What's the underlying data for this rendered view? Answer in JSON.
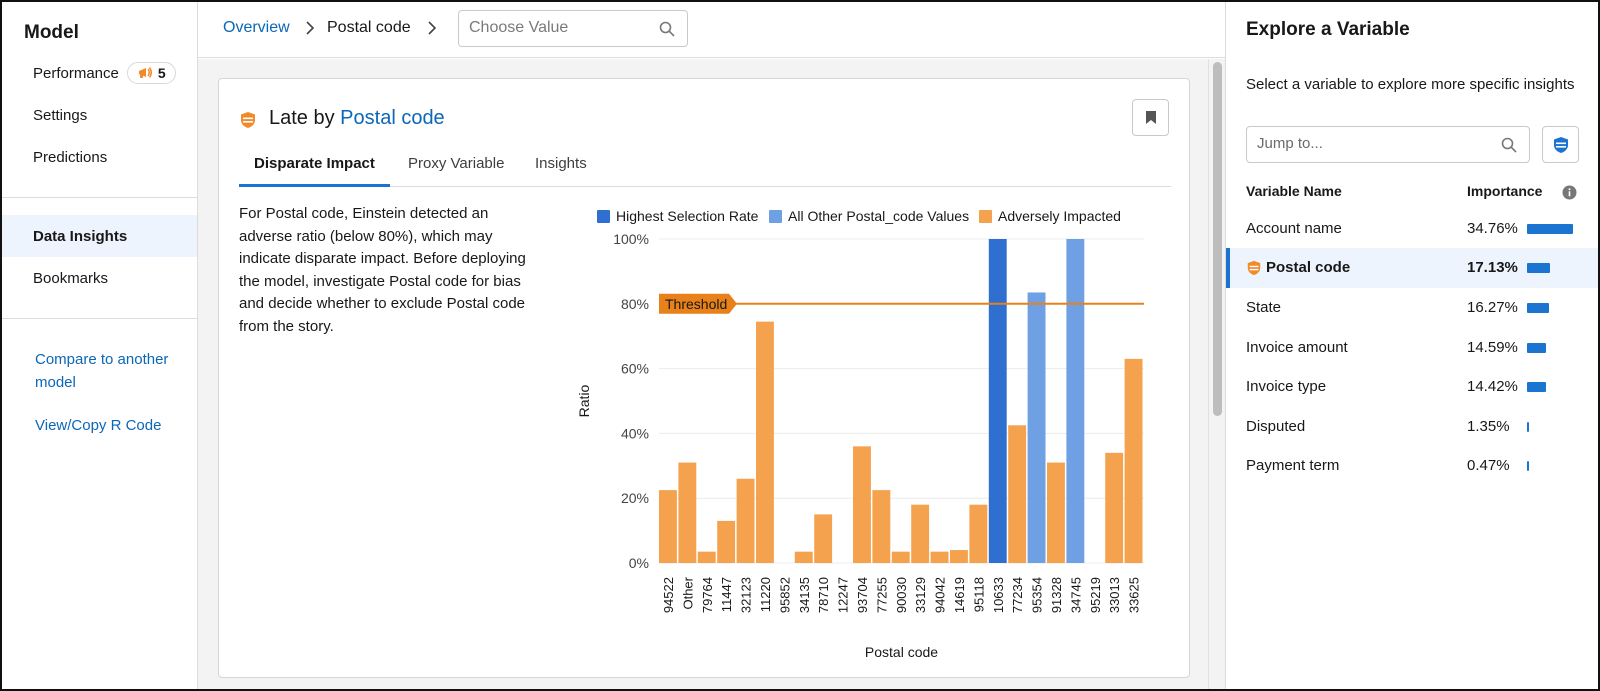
{
  "sidebar": {
    "title": "Model",
    "items": [
      {
        "label": "Performance",
        "badge": "5"
      },
      {
        "label": "Settings"
      },
      {
        "label": "Predictions"
      },
      {
        "label": "Data Insights"
      },
      {
        "label": "Bookmarks"
      }
    ],
    "links": [
      {
        "label": "Compare to another model"
      },
      {
        "label": "View/Copy R Code"
      }
    ]
  },
  "breadcrumb": {
    "overview": "Overview",
    "current": "Postal code",
    "choose_placeholder": "Choose Value"
  },
  "card": {
    "title_prefix": "Late by",
    "title_variable": "Postal code",
    "tabs": [
      "Disparate Impact",
      "Proxy Variable",
      "Insights"
    ],
    "description": "For Postal code, Einstein detected an adverse ratio (below 80%), which may indicate disparate impact. Before deploying the model, investigate Postal code for bias and decide whether to exclude Postal code from the story."
  },
  "chart_data": {
    "type": "bar",
    "xlabel": "Postal code",
    "ylabel": "Ratio",
    "ylim": [
      0,
      100
    ],
    "yticks": [
      "0%",
      "20%",
      "40%",
      "60%",
      "80%",
      "100%"
    ],
    "threshold": {
      "label": "Threshold",
      "value": 80
    },
    "legend_position": "top",
    "legend": [
      {
        "name": "Highest Selection Rate",
        "color": "#2f6fd0"
      },
      {
        "name": "All Other Postal_code Values",
        "color": "#6ea0e3"
      },
      {
        "name": "Adversely Impacted",
        "color": "#f5a24f"
      }
    ],
    "categories": [
      "94522",
      "Other",
      "79764",
      "11447",
      "32123",
      "11220",
      "95852",
      "34135",
      "78710",
      "12247",
      "93704",
      "77255",
      "90030",
      "33129",
      "94042",
      "14619",
      "95118",
      "10633",
      "77234",
      "95354",
      "91328",
      "34745",
      "95219",
      "33013",
      "33625"
    ],
    "values": [
      22.5,
      31,
      3.5,
      13,
      26,
      74.5,
      0,
      3.5,
      15,
      0,
      36,
      22.5,
      3.5,
      18,
      3.5,
      4,
      18,
      100,
      42.5,
      83.5,
      31,
      100,
      0,
      34,
      63
    ],
    "groups": [
      2,
      2,
      2,
      2,
      2,
      2,
      2,
      2,
      2,
      2,
      2,
      2,
      2,
      2,
      2,
      2,
      2,
      0,
      2,
      1,
      2,
      1,
      2,
      2,
      2
    ]
  },
  "right_panel": {
    "title": "Explore a Variable",
    "subtitle": "Select a variable to explore more specific insights",
    "jump_placeholder": "Jump to...",
    "col_name": "Variable Name",
    "col_importance": "Importance",
    "bar_color": "#1b74d0",
    "variables": [
      {
        "name": "Account name",
        "importance": "34.76%",
        "value": 34.76
      },
      {
        "name": "Postal code",
        "importance": "17.13%",
        "value": 17.13
      },
      {
        "name": "State",
        "importance": "16.27%",
        "value": 16.27
      },
      {
        "name": "Invoice amount",
        "importance": "14.59%",
        "value": 14.59
      },
      {
        "name": "Invoice type",
        "importance": "14.42%",
        "value": 14.42
      },
      {
        "name": "Disputed",
        "importance": "1.35%",
        "value": 1.35
      },
      {
        "name": "Payment term",
        "importance": "0.47%",
        "value": 0.47
      }
    ]
  },
  "icons": {
    "performance_badge": "alert-megaphone-icon",
    "card": "shield-icon",
    "bookmark": "bookmark-icon",
    "search": "search-icon",
    "info": "info-icon"
  },
  "colors": {
    "accent": "#0b67b8",
    "shield_orange": "#f08a2b",
    "shield_blue": "#1b74d0"
  }
}
